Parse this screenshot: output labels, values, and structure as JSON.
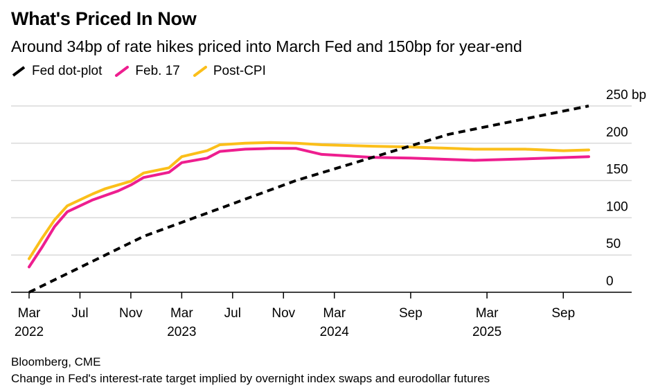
{
  "title": "What's Priced In Now",
  "subtitle": "Around 34bp of rate hikes priced into March Fed and 150bp for year-end",
  "source": "Bloomberg, CME",
  "note": "Change in Fed's interest-rate target implied by overnight index swaps and eurodollar futures",
  "colors": {
    "dot_plot": "#000000",
    "feb17": "#ee1e8f",
    "post_cpi": "#fbbf1a",
    "grid": "#d9d9d9"
  },
  "chart_data": {
    "type": "line",
    "xlabel": "",
    "ylabel": "",
    "ylim": [
      0,
      250
    ],
    "yticks": [
      0,
      50,
      100,
      150,
      200,
      250
    ],
    "ytick_labels": [
      "0",
      "50",
      "100",
      "150",
      "200",
      "250 bp"
    ],
    "xlim": [
      "2022-03",
      "2025-11"
    ],
    "xticks": [
      {
        "x": "2022-03",
        "label": "Mar",
        "year": "2022"
      },
      {
        "x": "2022-07",
        "label": "Jul",
        "year": ""
      },
      {
        "x": "2022-11",
        "label": "Nov",
        "year": ""
      },
      {
        "x": "2023-03",
        "label": "Mar",
        "year": "2023"
      },
      {
        "x": "2023-07",
        "label": "Jul",
        "year": ""
      },
      {
        "x": "2023-11",
        "label": "Nov",
        "year": ""
      },
      {
        "x": "2024-03",
        "label": "Mar",
        "year": "2024"
      },
      {
        "x": "2024-09",
        "label": "Sep",
        "year": ""
      },
      {
        "x": "2025-03",
        "label": "Mar",
        "year": "2025"
      },
      {
        "x": "2025-09",
        "label": "Sep",
        "year": ""
      }
    ],
    "grid": true,
    "legend": "top-left",
    "series": [
      {
        "name": "Fed dot-plot",
        "style": "dashed",
        "points": [
          [
            "2022-03",
            0
          ],
          [
            "2022-12",
            75
          ],
          [
            "2023-12",
            150
          ],
          [
            "2024-12",
            212
          ],
          [
            "2025-11",
            250
          ]
        ]
      },
      {
        "name": "Feb. 17",
        "style": "solid",
        "points": [
          [
            "2022-03",
            34
          ],
          [
            "2022-04",
            60
          ],
          [
            "2022-05",
            88
          ],
          [
            "2022-06",
            108
          ],
          [
            "2022-07",
            116
          ],
          [
            "2022-08",
            124
          ],
          [
            "2022-09",
            130
          ],
          [
            "2022-10",
            136
          ],
          [
            "2022-11",
            144
          ],
          [
            "2022-12",
            154
          ],
          [
            "2023-02",
            161
          ],
          [
            "2023-03",
            174
          ],
          [
            "2023-05",
            180
          ],
          [
            "2023-06",
            189
          ],
          [
            "2023-08",
            192
          ],
          [
            "2023-10",
            193
          ],
          [
            "2023-12",
            193
          ],
          [
            "2024-02",
            185
          ],
          [
            "2024-06",
            181
          ],
          [
            "2024-09",
            180
          ],
          [
            "2025-02",
            177
          ],
          [
            "2025-06",
            179
          ],
          [
            "2025-11",
            182
          ]
        ]
      },
      {
        "name": "Post-CPI",
        "style": "solid",
        "points": [
          [
            "2022-03",
            45
          ],
          [
            "2022-04",
            72
          ],
          [
            "2022-05",
            97
          ],
          [
            "2022-06",
            116
          ],
          [
            "2022-07",
            124
          ],
          [
            "2022-08",
            132
          ],
          [
            "2022-09",
            139
          ],
          [
            "2022-10",
            144
          ],
          [
            "2022-11",
            149
          ],
          [
            "2022-12",
            160
          ],
          [
            "2023-02",
            167
          ],
          [
            "2023-03",
            182
          ],
          [
            "2023-05",
            190
          ],
          [
            "2023-06",
            198
          ],
          [
            "2023-08",
            200
          ],
          [
            "2023-10",
            201
          ],
          [
            "2023-12",
            200
          ],
          [
            "2024-02",
            198
          ],
          [
            "2024-06",
            196
          ],
          [
            "2024-09",
            195
          ],
          [
            "2025-02",
            192
          ],
          [
            "2025-06",
            192
          ],
          [
            "2025-09",
            190
          ],
          [
            "2025-11",
            191
          ]
        ]
      }
    ]
  }
}
